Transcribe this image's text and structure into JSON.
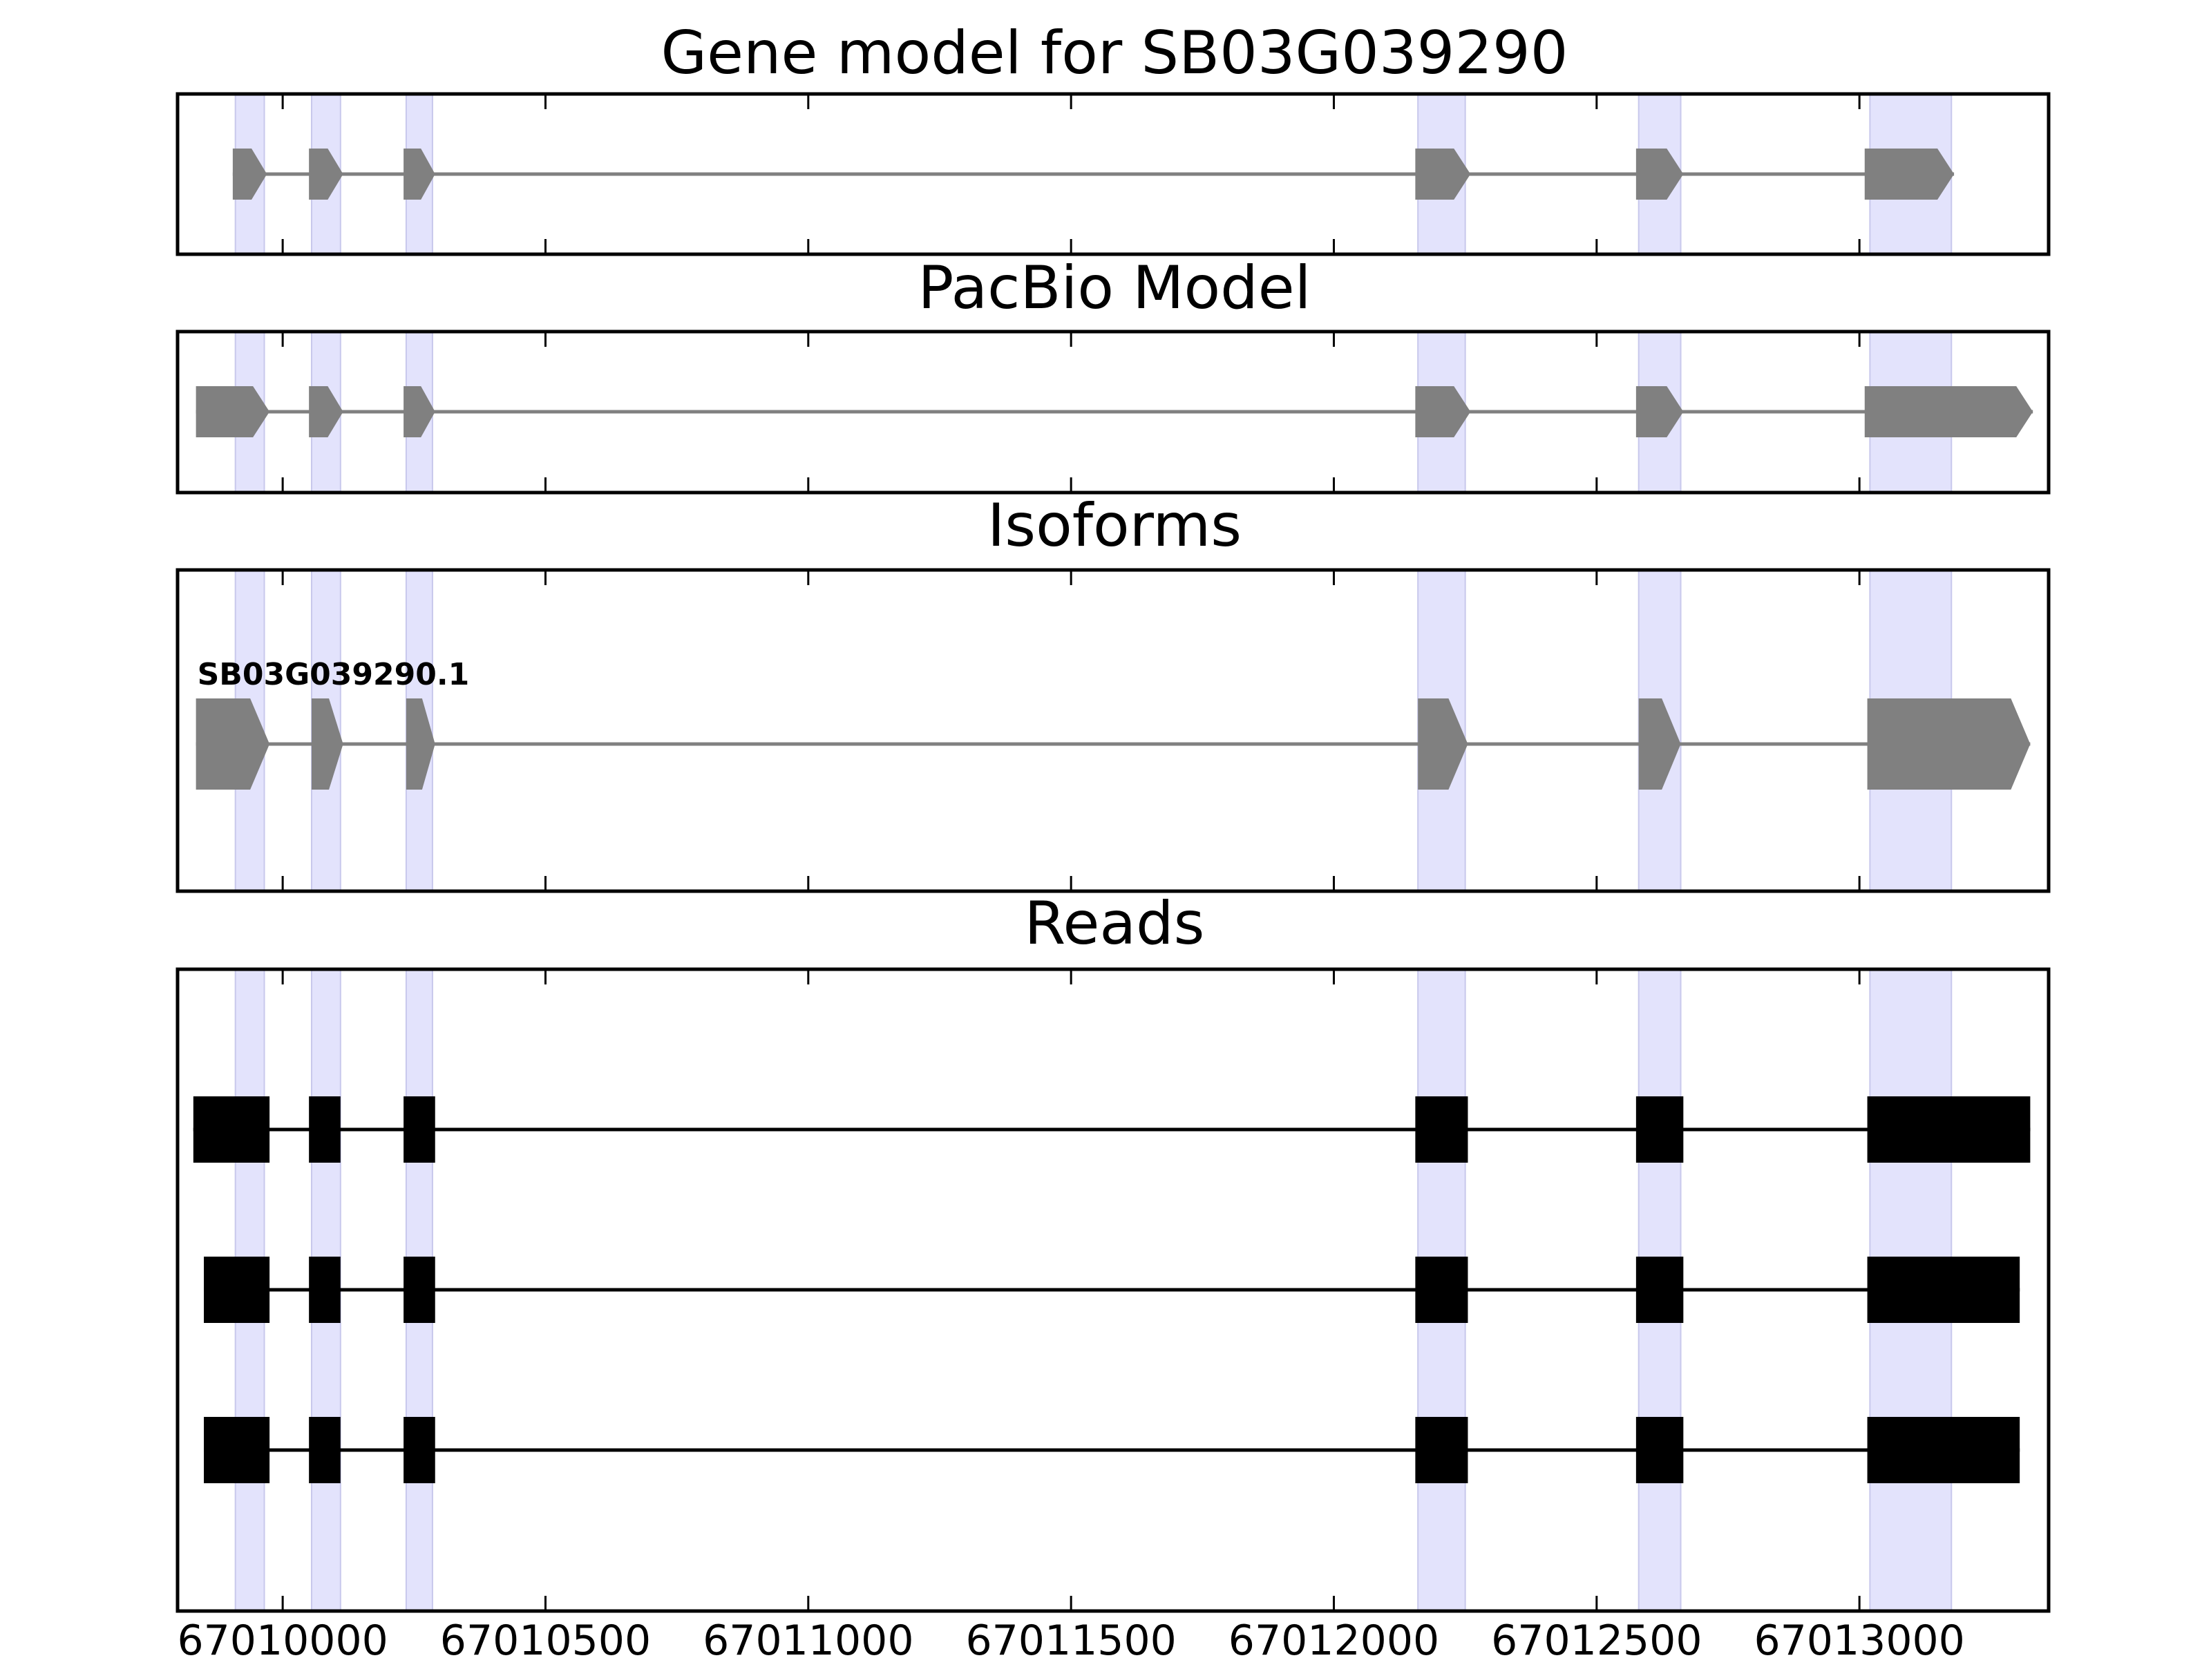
{
  "chart_data": {
    "type": "gene-structure",
    "x_range": [
      67009800,
      67013360
    ],
    "x_ticks": [
      67010000,
      67010500,
      67011000,
      67011500,
      67012000,
      67012500,
      67013000
    ],
    "x_tick_labels": [
      "67010000",
      "67010500",
      "67011000",
      "67011500",
      "67012000",
      "67012500",
      "67013000"
    ],
    "highlight_color": "#e3e3fc",
    "feature_color": "#808080",
    "read_color": "#000000",
    "exon_highlights": [
      [
        67009910,
        67009965
      ],
      [
        67010055,
        67010110
      ],
      [
        67010235,
        67010285
      ],
      [
        67012160,
        67012250
      ],
      [
        67012580,
        67012660
      ],
      [
        67013020,
        67013175
      ]
    ],
    "panels": [
      {
        "id": "gene-model",
        "title": "Gene model for SB03G039290",
        "kind": "gene",
        "transcripts": [
          {
            "label": "",
            "exons": [
              [
                67009905,
                67009970
              ],
              [
                67010050,
                67010115
              ],
              [
                67010230,
                67010290
              ],
              [
                67012155,
                67012260
              ],
              [
                67012575,
                67012665
              ],
              [
                67013010,
                67013180
              ]
            ]
          }
        ]
      },
      {
        "id": "pacbio-model",
        "title": "PacBio Model",
        "kind": "gene",
        "transcripts": [
          {
            "label": "",
            "exons": [
              [
                67009835,
                67009975
              ],
              [
                67010050,
                67010115
              ],
              [
                67010230,
                67010290
              ],
              [
                67012155,
                67012260
              ],
              [
                67012575,
                67012665
              ],
              [
                67013010,
                67013330
              ]
            ]
          }
        ]
      },
      {
        "id": "isoforms",
        "title": "Isoforms",
        "kind": "gene",
        "transcripts": [
          {
            "label": "SB03G039290.1",
            "exons": [
              [
                67009835,
                67009975
              ],
              [
                67010055,
                67010115
              ],
              [
                67010235,
                67010290
              ],
              [
                67012160,
                67012255
              ],
              [
                67012580,
                67012660
              ],
              [
                67013015,
                67013325
              ]
            ]
          }
        ]
      },
      {
        "id": "reads",
        "title": "Reads",
        "kind": "reads",
        "reads": [
          {
            "exons": [
              [
                67009830,
                67009975
              ],
              [
                67010050,
                67010110
              ],
              [
                67010230,
                67010290
              ],
              [
                67012155,
                67012255
              ],
              [
                67012575,
                67012665
              ],
              [
                67013015,
                67013325
              ]
            ]
          },
          {
            "exons": [
              [
                67009850,
                67009975
              ],
              [
                67010050,
                67010110
              ],
              [
                67010230,
                67010290
              ],
              [
                67012155,
                67012255
              ],
              [
                67012575,
                67012665
              ],
              [
                67013015,
                67013305
              ]
            ]
          },
          {
            "exons": [
              [
                67009850,
                67009975
              ],
              [
                67010050,
                67010110
              ],
              [
                67010230,
                67010290
              ],
              [
                67012155,
                67012255
              ],
              [
                67012575,
                67012665
              ],
              [
                67013015,
                67013305
              ]
            ]
          }
        ]
      }
    ]
  }
}
